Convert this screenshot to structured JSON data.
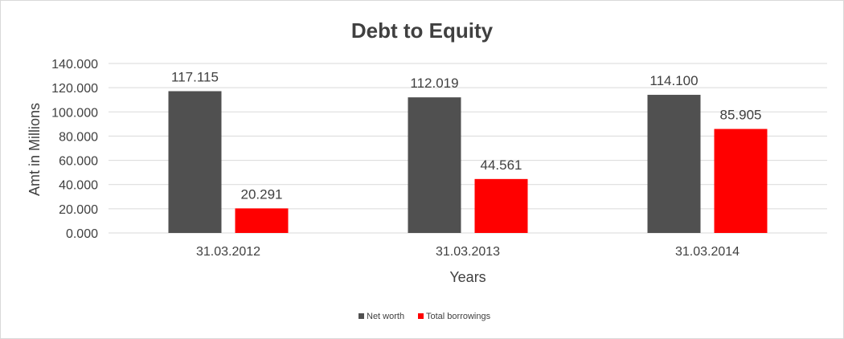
{
  "chart_data": {
    "type": "bar",
    "title": "Debt to Equity",
    "xlabel": "Years",
    "ylabel": "Amt in Millions",
    "categories": [
      "31.03.2012",
      "31.03.2013",
      "31.03.2014"
    ],
    "series": [
      {
        "name": "Net worth",
        "color": "#505050",
        "values": [
          117.115,
          112.019,
          114.1
        ],
        "labels": [
          "117.115",
          "112.019",
          "114.100"
        ]
      },
      {
        "name": "Total borrowings",
        "color": "#ff0000",
        "values": [
          20.291,
          44.561,
          85.905
        ],
        "labels": [
          "20.291",
          "44.561",
          "85.905"
        ]
      }
    ],
    "ylim": [
      0,
      140
    ],
    "yticks": [
      "0.000",
      "20.000",
      "40.000",
      "60.000",
      "80.000",
      "100.000",
      "120.000",
      "140.000"
    ],
    "ytick_values": [
      0,
      20,
      40,
      60,
      80,
      100,
      120,
      140
    ],
    "grid": true,
    "legend_position": "bottom"
  }
}
